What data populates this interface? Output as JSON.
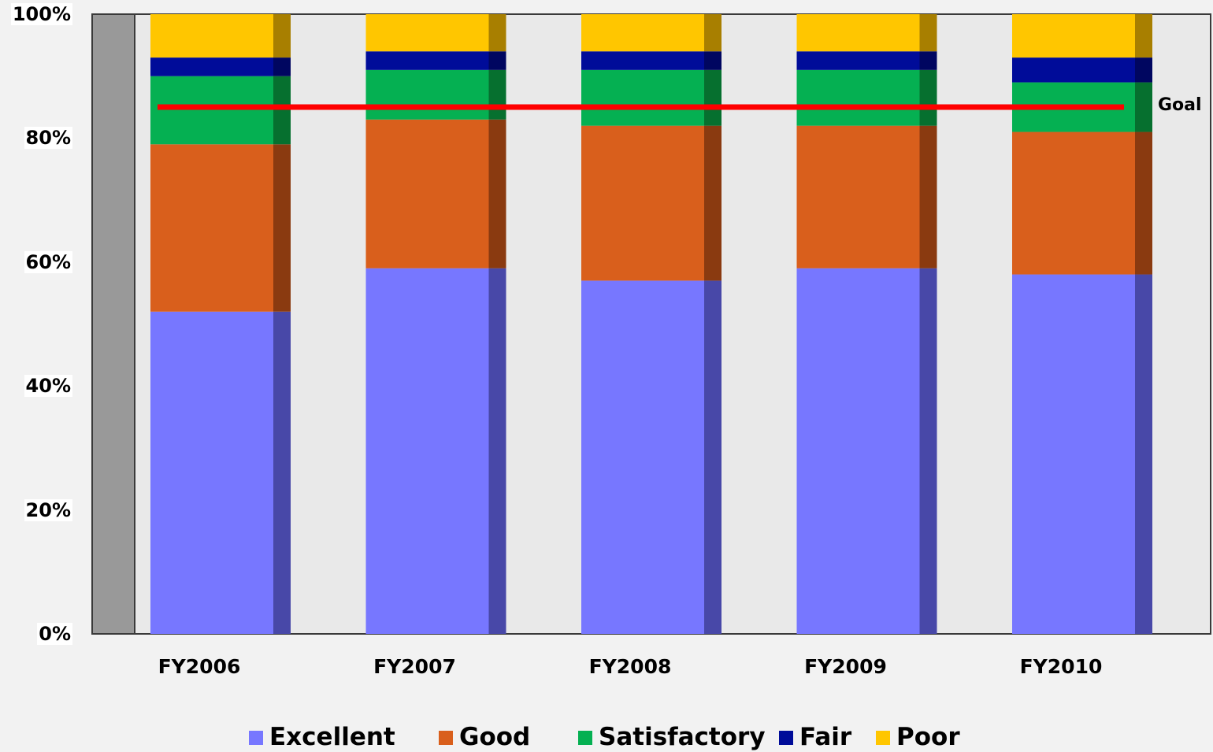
{
  "chart_data": {
    "type": "bar",
    "stacked": true,
    "categories": [
      "FY2006",
      "FY2007",
      "FY2008",
      "FY2009",
      "FY2010"
    ],
    "series": [
      {
        "name": "Excellent",
        "color": "#7777ff",
        "shade": "#4848a8",
        "values": [
          52,
          59,
          57,
          59,
          58
        ]
      },
      {
        "name": "Good",
        "color": "#d95f1c",
        "shade": "#8a3a10",
        "values": [
          27,
          24,
          25,
          23,
          23
        ]
      },
      {
        "name": "Satisfactory",
        "color": "#05b052",
        "shade": "#06702f",
        "values": [
          11,
          8,
          9,
          9,
          8
        ]
      },
      {
        "name": "Fair",
        "color": "#000c99",
        "shade": "#000660",
        "values": [
          3,
          3,
          3,
          3,
          4
        ]
      },
      {
        "name": "Poor",
        "color": "#ffc600",
        "shade": "#a87f00",
        "values": [
          7,
          6,
          6,
          6,
          7
        ]
      }
    ],
    "yticks": [
      "0%",
      "20%",
      "40%",
      "60%",
      "80%",
      "100%"
    ],
    "ylim": [
      0,
      100
    ],
    "goal": {
      "label": "Goal",
      "value": 85,
      "color": "#ff0000"
    },
    "plot_background": "#e9e9e9",
    "legend_position": "bottom"
  }
}
